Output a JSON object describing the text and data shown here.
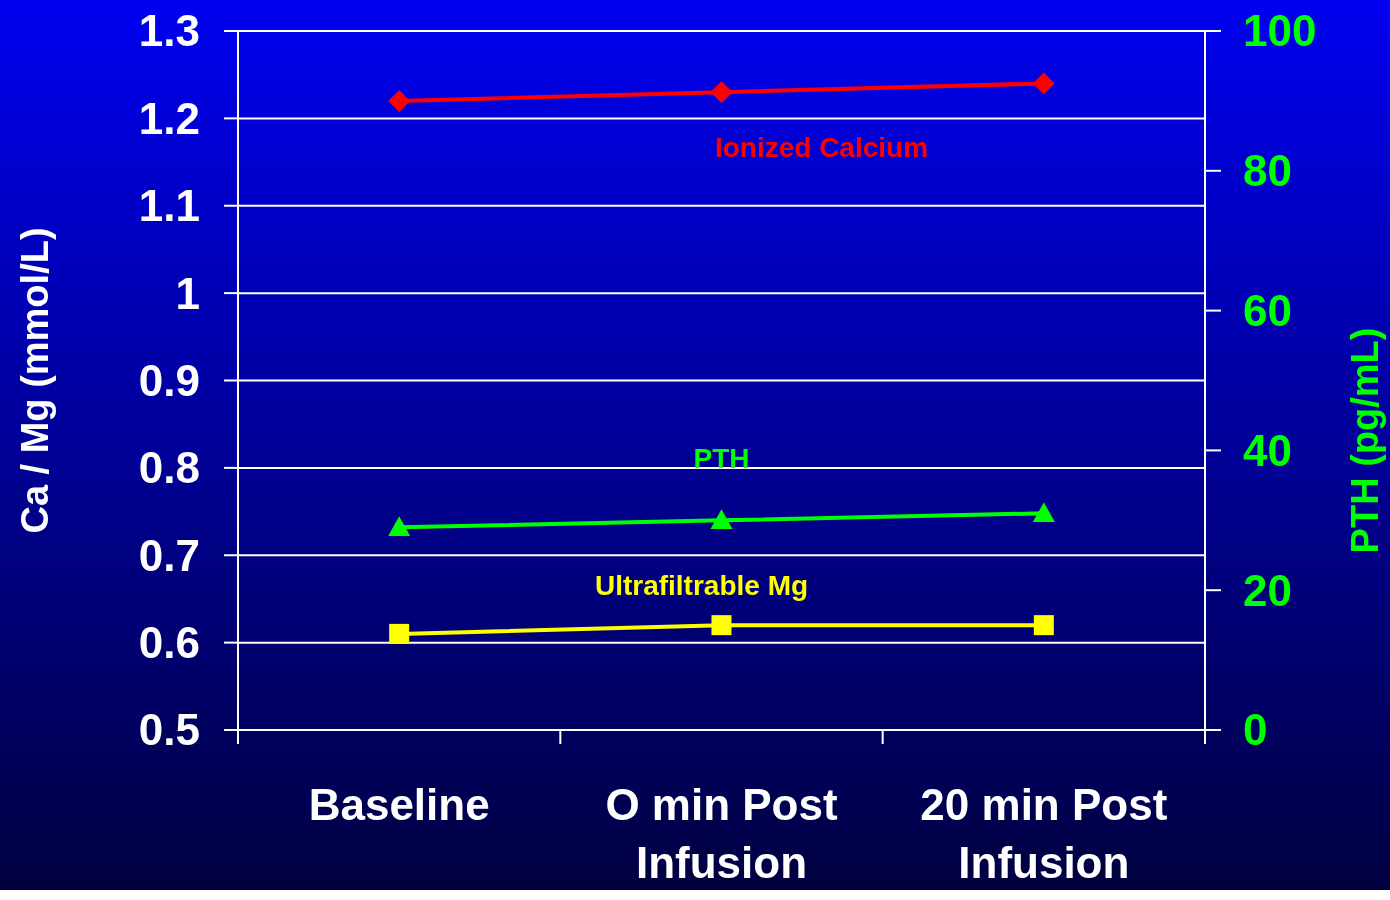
{
  "chart_data": {
    "type": "line",
    "categories": [
      "Baseline",
      "O min Post Infusion",
      "20 min Post Infusion"
    ],
    "ylabel": "Ca / Mg (mmol/L)",
    "y2label": "PTH (pg/mL)",
    "ylim": [
      0.5,
      1.3
    ],
    "yticks": [
      0.5,
      0.6,
      0.7,
      0.8,
      0.9,
      1,
      1.1,
      1.2,
      1.3
    ],
    "y2lim": [
      0,
      100
    ],
    "y2ticks": [
      0,
      20,
      40,
      60,
      80,
      100
    ],
    "grid": "y",
    "series": [
      {
        "name": "Ionized Calcium",
        "color": "#ff0000",
        "values": [
          1.22,
          1.23,
          1.24
        ],
        "marker": "diamond"
      },
      {
        "name": "PTH",
        "color": "#00ff00",
        "values": [
          29,
          30,
          31
        ],
        "axis": "y2",
        "marker": "triangle"
      },
      {
        "name": "Ultrafiltrable Mg",
        "color": "#ffff00",
        "values": [
          0.61,
          0.62,
          0.62
        ],
        "marker": "square"
      }
    ]
  }
}
